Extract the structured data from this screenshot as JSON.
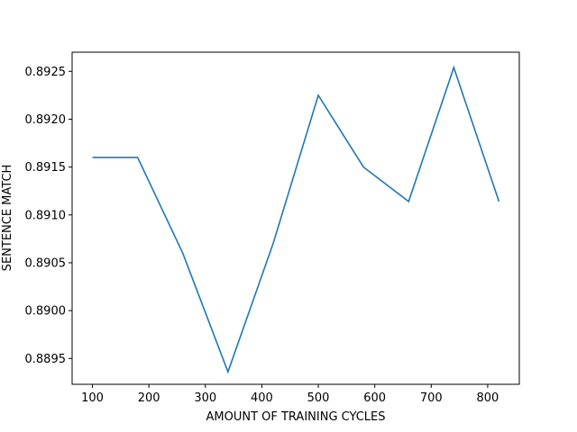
{
  "chart_data": {
    "type": "line",
    "title": "",
    "xlabel": "AMOUNT OF TRAINING CYCLES",
    "ylabel": "SENTENCE MATCH",
    "xlim": [
      64,
      856
    ],
    "ylim": [
      0.88923,
      0.8927
    ],
    "xticks": [
      100,
      200,
      300,
      400,
      500,
      600,
      700,
      800
    ],
    "xtick_labels": [
      "100",
      "200",
      "300",
      "400",
      "500",
      "600",
      "700",
      "800"
    ],
    "yticks": [
      0.8895,
      0.89,
      0.8905,
      0.891,
      0.8915,
      0.892,
      0.8925
    ],
    "ytick_labels": [
      "0.8895",
      "0.8900",
      "0.8905",
      "0.8910",
      "0.8915",
      "0.8920",
      "0.8925"
    ],
    "grid": false,
    "series": [
      {
        "color": "#1f77b4",
        "x": [
          100,
          180,
          260,
          340,
          420,
          500,
          580,
          660,
          740,
          820
        ],
        "y": [
          0.8916,
          0.8916,
          0.8906,
          0.88936,
          0.8907,
          0.89225,
          0.8915,
          0.89114,
          0.89254,
          0.89114
        ]
      }
    ]
  }
}
